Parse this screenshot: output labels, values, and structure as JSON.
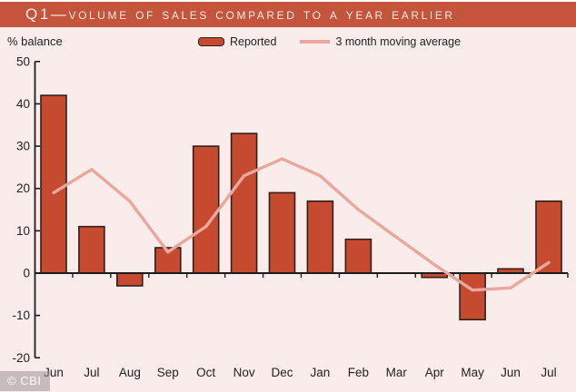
{
  "header": {
    "title": "Q1—volume of sales compared to a year earlier"
  },
  "axis_unit_label": "% balance",
  "legend": {
    "reported_label": "Reported",
    "moving_average_label": "3 month moving average"
  },
  "footer": {
    "credit": "© CBI"
  },
  "colors": {
    "header_bg": "#c4543c",
    "header_text": "#f6ebe8",
    "background": "#f9ecea",
    "bar_fill": "#c64a2f",
    "bar_stroke": "#30201a",
    "line": "#e9a79d",
    "axis": "#1c1c1c",
    "text": "#222222"
  },
  "chart_data": {
    "type": "bar",
    "title": "Q1—volume of sales compared to a year earlier",
    "ylabel": "% balance",
    "categories": [
      "Jun",
      "Jul",
      "Aug",
      "Sep",
      "Oct",
      "Nov",
      "Dec",
      "Jan",
      "Feb",
      "Mar",
      "Apr",
      "May",
      "Jun",
      "Jul"
    ],
    "series": [
      {
        "name": "Reported",
        "type": "bar",
        "values": [
          42,
          11,
          -3,
          6,
          30,
          33,
          19,
          17,
          8,
          0,
          -1,
          -11,
          1,
          17
        ]
      },
      {
        "name": "3 month moving average",
        "type": "line",
        "values": [
          19,
          24.5,
          17,
          5,
          11,
          23,
          27,
          23,
          15,
          8.5,
          2,
          -4,
          -3.5,
          2.5
        ]
      }
    ],
    "ylim": [
      -20,
      50
    ],
    "yticks": [
      50,
      40,
      30,
      20,
      10,
      0,
      -10,
      -20
    ],
    "grid": false,
    "legend_position": "top"
  }
}
